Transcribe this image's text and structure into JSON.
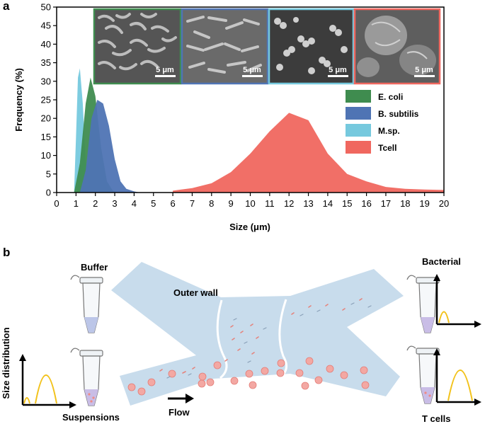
{
  "panel_a_label": "a",
  "panel_b_label": "b",
  "chart_data": {
    "type": "area",
    "xlabel": "Size (μm)",
    "ylabel": "Frequency (%)",
    "xlim": [
      0,
      20
    ],
    "ylim": [
      0,
      50
    ],
    "xticks": [
      "0",
      "1",
      "2",
      "3",
      "4",
      "5",
      "6",
      "7",
      "8",
      "9",
      "10",
      "11",
      "12",
      "13",
      "14",
      "15",
      "16",
      "17",
      "18",
      "19",
      "20"
    ],
    "yticks": [
      "0",
      "5",
      "10",
      "15",
      "20",
      "25",
      "30",
      "35",
      "40",
      "45",
      "50"
    ],
    "grid": false,
    "legend_position": "right",
    "series": [
      {
        "name": "E. coli",
        "color": "#3f8c4f",
        "x": [
          0.9,
          1.2,
          1.5,
          1.75,
          2.0,
          2.3,
          2.6,
          2.9,
          3.2
        ],
        "y": [
          0,
          8,
          24,
          31,
          26,
          12,
          3,
          0.5,
          0
        ]
      },
      {
        "name": "B. subtilis",
        "color": "#4f74b4",
        "x": [
          1.2,
          1.5,
          1.8,
          2.1,
          2.4,
          2.7,
          3.0,
          3.3,
          3.6,
          4.0,
          4.3
        ],
        "y": [
          0,
          6,
          20,
          25,
          24,
          18,
          9,
          3,
          1,
          0.3,
          0
        ]
      },
      {
        "name": "M.sp.",
        "color": "#76c9de",
        "x": [
          0.9,
          1.0,
          1.1,
          1.2,
          1.35,
          1.5,
          1.7
        ],
        "y": [
          0,
          15,
          31,
          33.5,
          24,
          8,
          0
        ]
      },
      {
        "name": "Tcell",
        "color": "#f0675f",
        "x": [
          6,
          7,
          8,
          9,
          10,
          11,
          12,
          13,
          14,
          15,
          16,
          17,
          18,
          19,
          20
        ],
        "y": [
          0.5,
          1.2,
          2.5,
          5.5,
          10.5,
          16.5,
          21.5,
          19.5,
          10.5,
          5,
          3,
          1.5,
          1,
          0.8,
          0.7
        ]
      }
    ],
    "insets": [
      {
        "name": "E. coli",
        "border": "#3f8c4f",
        "scalebar": "5 μm"
      },
      {
        "name": "B. subtilis",
        "border": "#4f74b4",
        "scalebar": "5 μm"
      },
      {
        "name": "M.sp.",
        "border": "#76c9de",
        "scalebar": "5 μm"
      },
      {
        "name": "Tcell",
        "border": "#f0675f",
        "scalebar": "5 μm"
      }
    ]
  },
  "schematic": {
    "buffer_label": "Buffer",
    "suspensions_label": "Suspensions",
    "outer_wall_label": "Outer wall",
    "flow_label": "Flow",
    "bacterial_label": "Bacterial",
    "tcells_label": "T cells",
    "size_distribution_label": "Size distribution",
    "channel_color": "#c8dcec",
    "cell_color": "#f3a8a3",
    "curve_color": "#f2c21b"
  }
}
